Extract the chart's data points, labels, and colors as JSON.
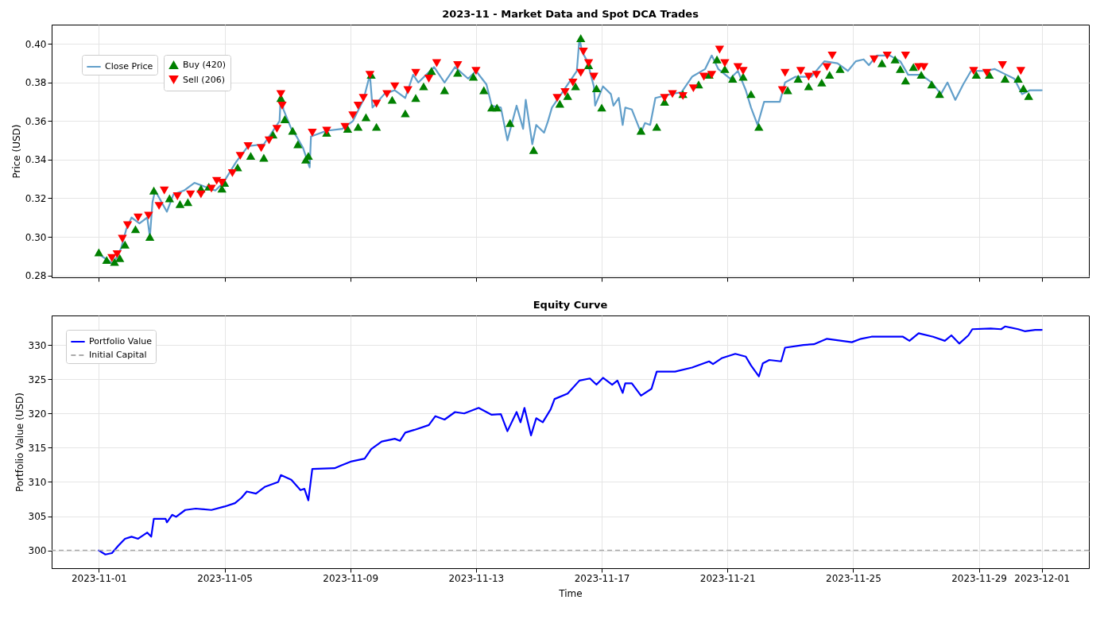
{
  "chart_data": [
    {
      "type": "line",
      "title": "2023-11 - Market Data and Spot DCA Trades",
      "ylabel": "Price (USD)",
      "xlim": [
        "2023-10-30T12:00",
        "2023-12-02T12:00"
      ],
      "xticks": [
        "2023-11-01",
        "2023-11-05",
        "2023-11-09",
        "2023-11-13",
        "2023-11-17",
        "2023-11-21",
        "2023-11-25",
        "2023-11-29",
        "2023-12-01"
      ],
      "ylim": [
        0.279,
        0.41
      ],
      "yticks": [
        0.28,
        {
          "value": 0.3,
          "label": "0.30"
        },
        0.32,
        0.34,
        0.36,
        0.38,
        {
          "value": 0.4,
          "label": "0.40"
        }
      ],
      "grid": true,
      "legend": "top left",
      "tick_labels": "y",
      "series": [
        {
          "name": "Close Price",
          "color": "#629fca",
          "x": [
            "2023-11-01T00:00",
            "2023-11-01T11:00",
            "2023-11-01T17:00",
            "2023-11-01T21:00",
            "2023-11-02T01:00",
            "2023-11-02T07:00",
            "2023-11-02T13:00",
            "2023-11-02T15:00",
            "2023-11-02T17:00",
            "2023-11-02T19:00",
            "2023-11-03T04:00",
            "2023-11-03T09:00",
            "2023-11-03T17:00",
            "2023-11-04T01:00",
            "2023-11-04T09:00",
            "2023-11-04T17:00",
            "2023-11-04T23:00",
            "2023-11-05T09:00",
            "2023-11-05T18:00",
            "2023-11-06T06:00",
            "2023-11-06T13:00",
            "2023-11-06T18:00",
            "2023-11-06T19:00",
            "2023-11-06T21:00",
            "2023-11-07T03:00",
            "2023-11-07T07:00",
            "2023-11-07T12:00",
            "2023-11-07T17:00",
            "2023-11-07T18:00",
            "2023-11-08T06:00",
            "2023-11-08T18:00",
            "2023-11-09T02:00",
            "2023-11-09T10:00",
            "2023-11-09T15:00",
            "2023-11-09T17:00",
            "2023-11-10T02:00",
            "2023-11-10T10:00",
            "2023-11-10T18:00",
            "2023-11-11T00:00",
            "2023-11-11T04:00",
            "2023-11-11T16:00",
            "2023-11-12T00:00",
            "2023-11-12T08:00",
            "2023-11-12T18:00",
            "2023-11-13T00:00",
            "2023-11-13T08:00",
            "2023-11-13T12:00",
            "2023-11-13T19:00",
            "2023-11-14T00:00",
            "2023-11-14T07:00",
            "2023-11-14T12:00",
            "2023-11-14T14:00",
            "2023-11-14T19:00",
            "2023-11-14T22:00",
            "2023-11-15T04:00",
            "2023-11-15T07:00",
            "2023-11-15T10:00",
            "2023-11-15T19:00",
            "2023-11-16T05:00",
            "2023-11-16T07:00",
            "2023-11-16T09:00",
            "2023-11-16T13:00",
            "2023-11-16T18:00",
            "2023-11-16T19:00",
            "2023-11-17T01:00",
            "2023-11-17T07:00",
            "2023-11-17T09:00",
            "2023-11-17T13:00",
            "2023-11-17T16:00",
            "2023-11-17T18:00",
            "2023-11-17T23:00",
            "2023-11-18T06:00",
            "2023-11-18T09:00",
            "2023-11-18T13:00",
            "2023-11-18T17:00",
            "2023-11-19T05:00",
            "2023-11-19T13:00",
            "2023-11-19T21:00",
            "2023-11-20T07:00",
            "2023-11-20T12:00",
            "2023-11-20T17:00",
            "2023-11-21T02:00",
            "2023-11-21T08:00",
            "2023-11-21T14:00",
            "2023-11-21T18:00",
            "2023-11-21T23:00",
            "2023-11-22T04:00",
            "2023-11-22T16:00",
            "2023-11-22T20:00",
            "2023-11-23T04:00",
            "2023-11-23T16:00",
            "2023-11-24T02:00",
            "2023-11-24T12:00",
            "2023-11-24T20:00",
            "2023-11-25T02:00",
            "2023-11-25T08:00",
            "2023-11-25T12:00",
            "2023-11-25T18:00",
            "2023-11-26T04:00",
            "2023-11-26T12:00",
            "2023-11-26T18:00",
            "2023-11-27T04:00",
            "2023-11-27T12:00",
            "2023-11-27T19:00",
            "2023-11-28T00:00",
            "2023-11-28T06:00",
            "2023-11-28T12:00",
            "2023-11-28T18:00",
            "2023-11-29T05:00",
            "2023-11-29T12:00",
            "2023-11-29T21:00",
            "2023-11-30T03:00",
            "2023-11-30T09:00",
            "2023-11-30T15:00",
            "2023-12-01T00:00"
          ],
          "values": [
            0.291,
            0.286,
            0.294,
            0.304,
            0.31,
            0.307,
            0.31,
            0.3,
            0.318,
            0.324,
            0.313,
            0.322,
            0.324,
            0.328,
            0.326,
            0.324,
            0.328,
            0.339,
            0.347,
            0.348,
            0.355,
            0.36,
            0.374,
            0.366,
            0.356,
            0.352,
            0.346,
            0.336,
            0.352,
            0.355,
            0.356,
            0.36,
            0.371,
            0.384,
            0.367,
            0.374,
            0.376,
            0.372,
            0.384,
            0.38,
            0.388,
            0.38,
            0.388,
            0.382,
            0.386,
            0.379,
            0.368,
            0.367,
            0.35,
            0.368,
            0.356,
            0.371,
            0.348,
            0.358,
            0.354,
            0.36,
            0.367,
            0.376,
            0.386,
            0.403,
            0.396,
            0.391,
            0.378,
            0.368,
            0.378,
            0.374,
            0.368,
            0.372,
            0.358,
            0.367,
            0.366,
            0.354,
            0.359,
            0.358,
            0.372,
            0.374,
            0.375,
            0.383,
            0.387,
            0.394,
            0.387,
            0.382,
            0.386,
            0.376,
            0.367,
            0.358,
            0.37,
            0.37,
            0.38,
            0.383,
            0.383,
            0.391,
            0.39,
            0.386,
            0.391,
            0.392,
            0.389,
            0.394,
            0.394,
            0.391,
            0.384,
            0.384,
            0.38,
            0.374,
            0.38,
            0.371,
            0.379,
            0.386,
            0.386,
            0.387,
            0.384,
            0.382,
            0.374,
            0.376,
            0.376
          ]
        },
        {
          "type": "scatter",
          "name": "Buy (420)",
          "color": "#008000",
          "marker": "triangle",
          "x": [
            "2023-11-01T00:00",
            "2023-11-01T06:00",
            "2023-11-01T12:00",
            "2023-11-01T16:00",
            "2023-11-01T20:00",
            "2023-11-02T04:00",
            "2023-11-02T15:00",
            "2023-11-02T18:00",
            "2023-11-03T06:00",
            "2023-11-03T14:00",
            "2023-11-03T20:00",
            "2023-11-04T06:00",
            "2023-11-04T12:00",
            "2023-11-04T22:00",
            "2023-11-05T00:00",
            "2023-11-05T10:00",
            "2023-11-05T20:00",
            "2023-11-06T06:00",
            "2023-11-06T13:00",
            "2023-11-06T19:00",
            "2023-11-06T22:00",
            "2023-11-07T04:00",
            "2023-11-07T08:00",
            "2023-11-07T14:00",
            "2023-11-07T16:00",
            "2023-11-08T06:00",
            "2023-11-08T22:00",
            "2023-11-09T06:00",
            "2023-11-09T12:00",
            "2023-11-09T16:00",
            "2023-11-09T20:00",
            "2023-11-10T08:00",
            "2023-11-10T18:00",
            "2023-11-11T02:00",
            "2023-11-11T08:00",
            "2023-11-11T14:00",
            "2023-11-12T00:00",
            "2023-11-12T10:00",
            "2023-11-12T22:00",
            "2023-11-13T06:00",
            "2023-11-13T12:00",
            "2023-11-13T16:00",
            "2023-11-14T02:00",
            "2023-11-14T20:00",
            "2023-11-15T16:00",
            "2023-11-15T22:00",
            "2023-11-16T04:00",
            "2023-11-16T08:00",
            "2023-11-16T14:00",
            "2023-11-16T20:00",
            "2023-11-17T00:00",
            "2023-11-18T06:00",
            "2023-11-18T18:00",
            "2023-11-19T00:00",
            "2023-11-19T14:00",
            "2023-11-20T02:00",
            "2023-11-20T10:00",
            "2023-11-20T16:00",
            "2023-11-20T22:00",
            "2023-11-21T04:00",
            "2023-11-21T12:00",
            "2023-11-21T18:00",
            "2023-11-22T00:00",
            "2023-11-22T22:00",
            "2023-11-23T06:00",
            "2023-11-23T14:00",
            "2023-11-24T00:00",
            "2023-11-24T06:00",
            "2023-11-24T14:00",
            "2023-11-25T22:00",
            "2023-11-26T08:00",
            "2023-11-26T12:00",
            "2023-11-26T16:00",
            "2023-11-26T22:00",
            "2023-11-27T04:00",
            "2023-11-27T12:00",
            "2023-11-27T18:00",
            "2023-11-28T22:00",
            "2023-11-29T08:00",
            "2023-11-29T20:00",
            "2023-11-30T06:00",
            "2023-11-30T10:00",
            "2023-11-30T14:00"
          ],
          "values": [
            0.292,
            0.288,
            0.287,
            0.289,
            0.296,
            0.304,
            0.3,
            0.324,
            0.32,
            0.317,
            0.318,
            0.325,
            0.326,
            0.325,
            0.328,
            0.336,
            0.342,
            0.341,
            0.353,
            0.372,
            0.361,
            0.355,
            0.348,
            0.34,
            0.342,
            0.354,
            0.356,
            0.357,
            0.362,
            0.384,
            0.357,
            0.371,
            0.364,
            0.372,
            0.378,
            0.386,
            0.376,
            0.385,
            0.383,
            0.376,
            0.367,
            0.367,
            0.359,
            0.345,
            0.369,
            0.373,
            0.378,
            0.403,
            0.389,
            0.377,
            0.367,
            0.355,
            0.357,
            0.37,
            0.374,
            0.379,
            0.384,
            0.392,
            0.387,
            0.382,
            0.383,
            0.374,
            0.357,
            0.376,
            0.382,
            0.378,
            0.38,
            0.384,
            0.387,
            0.39,
            0.392,
            0.387,
            0.381,
            0.388,
            0.384,
            0.379,
            0.374,
            0.384,
            0.384,
            0.382,
            0.382,
            0.377,
            0.373
          ]
        },
        {
          "type": "scatter",
          "name": "Sell (206)",
          "color": "#ff0000",
          "marker": "triangle",
          "x": [
            "2023-11-01T10:00",
            "2023-11-01T14:00",
            "2023-11-01T18:00",
            "2023-11-01T22:00",
            "2023-11-02T06:00",
            "2023-11-02T14:00",
            "2023-11-02T22:00",
            "2023-11-03T02:00",
            "2023-11-03T12:00",
            "2023-11-03T22:00",
            "2023-11-04T06:00",
            "2023-11-04T14:00",
            "2023-11-04T18:00",
            "2023-11-04T22:00",
            "2023-11-05T06:00",
            "2023-11-05T12:00",
            "2023-11-05T18:00",
            "2023-11-06T04:00",
            "2023-11-06T10:00",
            "2023-11-06T16:00",
            "2023-11-06T19:00",
            "2023-11-06T20:00",
            "2023-11-07T19:00",
            "2023-11-08T06:00",
            "2023-11-08T20:00",
            "2023-11-09T02:00",
            "2023-11-09T06:00",
            "2023-11-09T10:00",
            "2023-11-09T15:00",
            "2023-11-09T20:00",
            "2023-11-10T04:00",
            "2023-11-10T10:00",
            "2023-11-10T20:00",
            "2023-11-11T02:00",
            "2023-11-11T12:00",
            "2023-11-11T18:00",
            "2023-11-12T10:00",
            "2023-11-13T00:00",
            "2023-11-15T14:00",
            "2023-11-15T20:00",
            "2023-11-16T02:00",
            "2023-11-16T08:00",
            "2023-11-16T10:00",
            "2023-11-16T14:00",
            "2023-11-16T18:00",
            "2023-11-19T00:00",
            "2023-11-19T06:00",
            "2023-11-19T14:00",
            "2023-11-19T22:00",
            "2023-11-20T06:00",
            "2023-11-20T12:00",
            "2023-11-20T18:00",
            "2023-11-20T22:00",
            "2023-11-21T08:00",
            "2023-11-21T12:00",
            "2023-11-22T18:00",
            "2023-11-22T20:00",
            "2023-11-23T08:00",
            "2023-11-23T14:00",
            "2023-11-23T20:00",
            "2023-11-24T04:00",
            "2023-11-24T08:00",
            "2023-11-25T16:00",
            "2023-11-26T02:00",
            "2023-11-26T16:00",
            "2023-11-27T02:00",
            "2023-11-27T06:00",
            "2023-11-28T20:00",
            "2023-11-29T06:00",
            "2023-11-29T18:00",
            "2023-11-30T08:00"
          ],
          "values": [
            0.289,
            0.291,
            0.299,
            0.306,
            0.31,
            0.311,
            0.316,
            0.324,
            0.321,
            0.322,
            0.322,
            0.325,
            0.329,
            0.328,
            0.333,
            0.342,
            0.347,
            0.346,
            0.35,
            0.356,
            0.374,
            0.368,
            0.354,
            0.355,
            0.357,
            0.363,
            0.368,
            0.372,
            0.384,
            0.369,
            0.374,
            0.378,
            0.376,
            0.385,
            0.382,
            0.39,
            0.389,
            0.386,
            0.372,
            0.375,
            0.38,
            0.385,
            0.396,
            0.39,
            0.383,
            0.372,
            0.374,
            0.373,
            0.377,
            0.383,
            0.384,
            0.397,
            0.39,
            0.388,
            0.386,
            0.376,
            0.385,
            0.386,
            0.383,
            0.384,
            0.388,
            0.394,
            0.392,
            0.394,
            0.394,
            0.388,
            0.388,
            0.386,
            0.385,
            0.389,
            0.386
          ]
        }
      ]
    },
    {
      "type": "line",
      "title": "Equity Curve",
      "xlabel": "Time",
      "ylabel": "Portfolio Value (USD)",
      "xlim": [
        "2023-10-30T12:00",
        "2023-12-02T12:00"
      ],
      "xticks": [
        "2023-11-01",
        "2023-11-05",
        "2023-11-09",
        "2023-11-13",
        "2023-11-17",
        "2023-11-21",
        "2023-11-25",
        "2023-11-29",
        "2023-12-01"
      ],
      "ylim": [
        297.4,
        334.3
      ],
      "yticks": [
        300,
        305,
        310,
        315,
        320,
        325,
        330
      ],
      "grid": true,
      "legend": "top left",
      "series": [
        {
          "name": "Portfolio Value",
          "color": "#0000ff",
          "x": [
            "2023-11-01T00:00",
            "2023-11-01T05:00",
            "2023-11-01T10:00",
            "2023-11-01T15:00",
            "2023-11-01T20:00",
            "2023-11-02T01:00",
            "2023-11-02T06:00",
            "2023-11-02T13:00",
            "2023-11-02T16:00",
            "2023-11-02T18:00",
            "2023-11-03T03:00",
            "2023-11-03T04:00",
            "2023-11-03T08:00",
            "2023-11-03T11:00",
            "2023-11-03T18:00",
            "2023-11-04T02:00",
            "2023-11-04T14:00",
            "2023-11-05T00:00",
            "2023-11-05T08:00",
            "2023-11-05T13:00",
            "2023-11-05T17:00",
            "2023-11-06T00:00",
            "2023-11-06T07:00",
            "2023-11-06T17:00",
            "2023-11-06T19:00",
            "2023-11-07T03:00",
            "2023-11-07T10:00",
            "2023-11-07T13:00",
            "2023-11-07T16:00",
            "2023-11-07T19:00",
            "2023-11-08T12:00",
            "2023-11-08T17:00",
            "2023-11-09T01:00",
            "2023-11-09T11:00",
            "2023-11-09T16:00",
            "2023-11-10T00:00",
            "2023-11-10T10:00",
            "2023-11-10T14:00",
            "2023-11-10T18:00",
            "2023-11-11T01:00",
            "2023-11-11T12:00",
            "2023-11-11T17:00",
            "2023-11-12T00:00",
            "2023-11-12T08:00",
            "2023-11-12T15:00",
            "2023-11-13T02:00",
            "2023-11-13T12:00",
            "2023-11-13T19:00",
            "2023-11-14T00:00",
            "2023-11-14T07:00",
            "2023-11-14T10:00",
            "2023-11-14T13:00",
            "2023-11-14T18:00",
            "2023-11-14T22:00",
            "2023-11-15T03:00",
            "2023-11-15T09:00",
            "2023-11-15T12:00",
            "2023-11-15T22:00",
            "2023-11-16T07:00",
            "2023-11-16T15:00",
            "2023-11-16T20:00",
            "2023-11-17T01:00",
            "2023-11-17T08:00",
            "2023-11-17T12:00",
            "2023-11-17T16:00",
            "2023-11-17T18:00",
            "2023-11-17T23:00",
            "2023-11-18T06:00",
            "2023-11-18T14:00",
            "2023-11-18T18:00",
            "2023-11-19T08:00",
            "2023-11-19T21:00",
            "2023-11-20T10:00",
            "2023-11-20T13:00",
            "2023-11-20T20:00",
            "2023-11-21T06:00",
            "2023-11-21T14:00",
            "2023-11-21T18:00",
            "2023-11-22T00:00",
            "2023-11-22T03:00",
            "2023-11-22T08:00",
            "2023-11-22T17:00",
            "2023-11-22T20:00",
            "2023-11-23T10:00",
            "2023-11-23T18:00",
            "2023-11-24T04:00",
            "2023-11-24T23:00",
            "2023-11-25T06:00",
            "2023-11-25T14:00",
            "2023-11-26T14:00",
            "2023-11-26T19:00",
            "2023-11-27T02:00",
            "2023-11-27T13:00",
            "2023-11-27T22:00",
            "2023-11-28T03:00",
            "2023-11-28T09:00",
            "2023-11-28T16:00",
            "2023-11-28T19:00",
            "2023-11-29T09:00",
            "2023-11-29T17:00",
            "2023-11-29T20:00",
            "2023-11-30T06:00",
            "2023-11-30T11:00",
            "2023-11-30T19:00",
            "2023-12-01T00:00"
          ],
          "values": [
            300.0,
            299.4,
            299.6,
            300.7,
            301.7,
            302.0,
            301.7,
            302.6,
            302.0,
            304.6,
            304.6,
            304.1,
            305.2,
            304.9,
            305.9,
            306.1,
            305.9,
            306.4,
            306.9,
            307.7,
            308.6,
            308.3,
            309.3,
            310.0,
            311.0,
            310.3,
            308.8,
            309.0,
            307.3,
            311.9,
            312.0,
            312.4,
            313.0,
            313.4,
            314.8,
            315.9,
            316.3,
            316.0,
            317.2,
            317.6,
            318.3,
            319.6,
            319.1,
            320.2,
            320.0,
            320.8,
            319.8,
            319.9,
            317.4,
            320.2,
            318.7,
            320.8,
            316.8,
            319.3,
            318.7,
            320.6,
            322.1,
            322.9,
            324.8,
            325.1,
            324.2,
            325.2,
            324.2,
            324.8,
            323.0,
            324.4,
            324.4,
            322.6,
            323.6,
            326.1,
            326.1,
            326.7,
            327.6,
            327.2,
            328.1,
            328.7,
            328.3,
            327.0,
            325.4,
            327.3,
            327.8,
            327.6,
            329.6,
            330.0,
            330.1,
            330.9,
            330.4,
            330.9,
            331.2,
            331.2,
            330.6,
            331.7,
            331.2,
            330.6,
            331.4,
            330.2,
            331.4,
            332.3,
            332.4,
            332.3,
            332.7,
            332.3,
            332.0,
            332.2,
            332.2
          ]
        }
      ],
      "ref_lines": [
        {
          "axis": "y",
          "value": 300,
          "label": "Initial Capital",
          "color": "#aaaaaa",
          "line_style": "dashed"
        }
      ]
    }
  ]
}
